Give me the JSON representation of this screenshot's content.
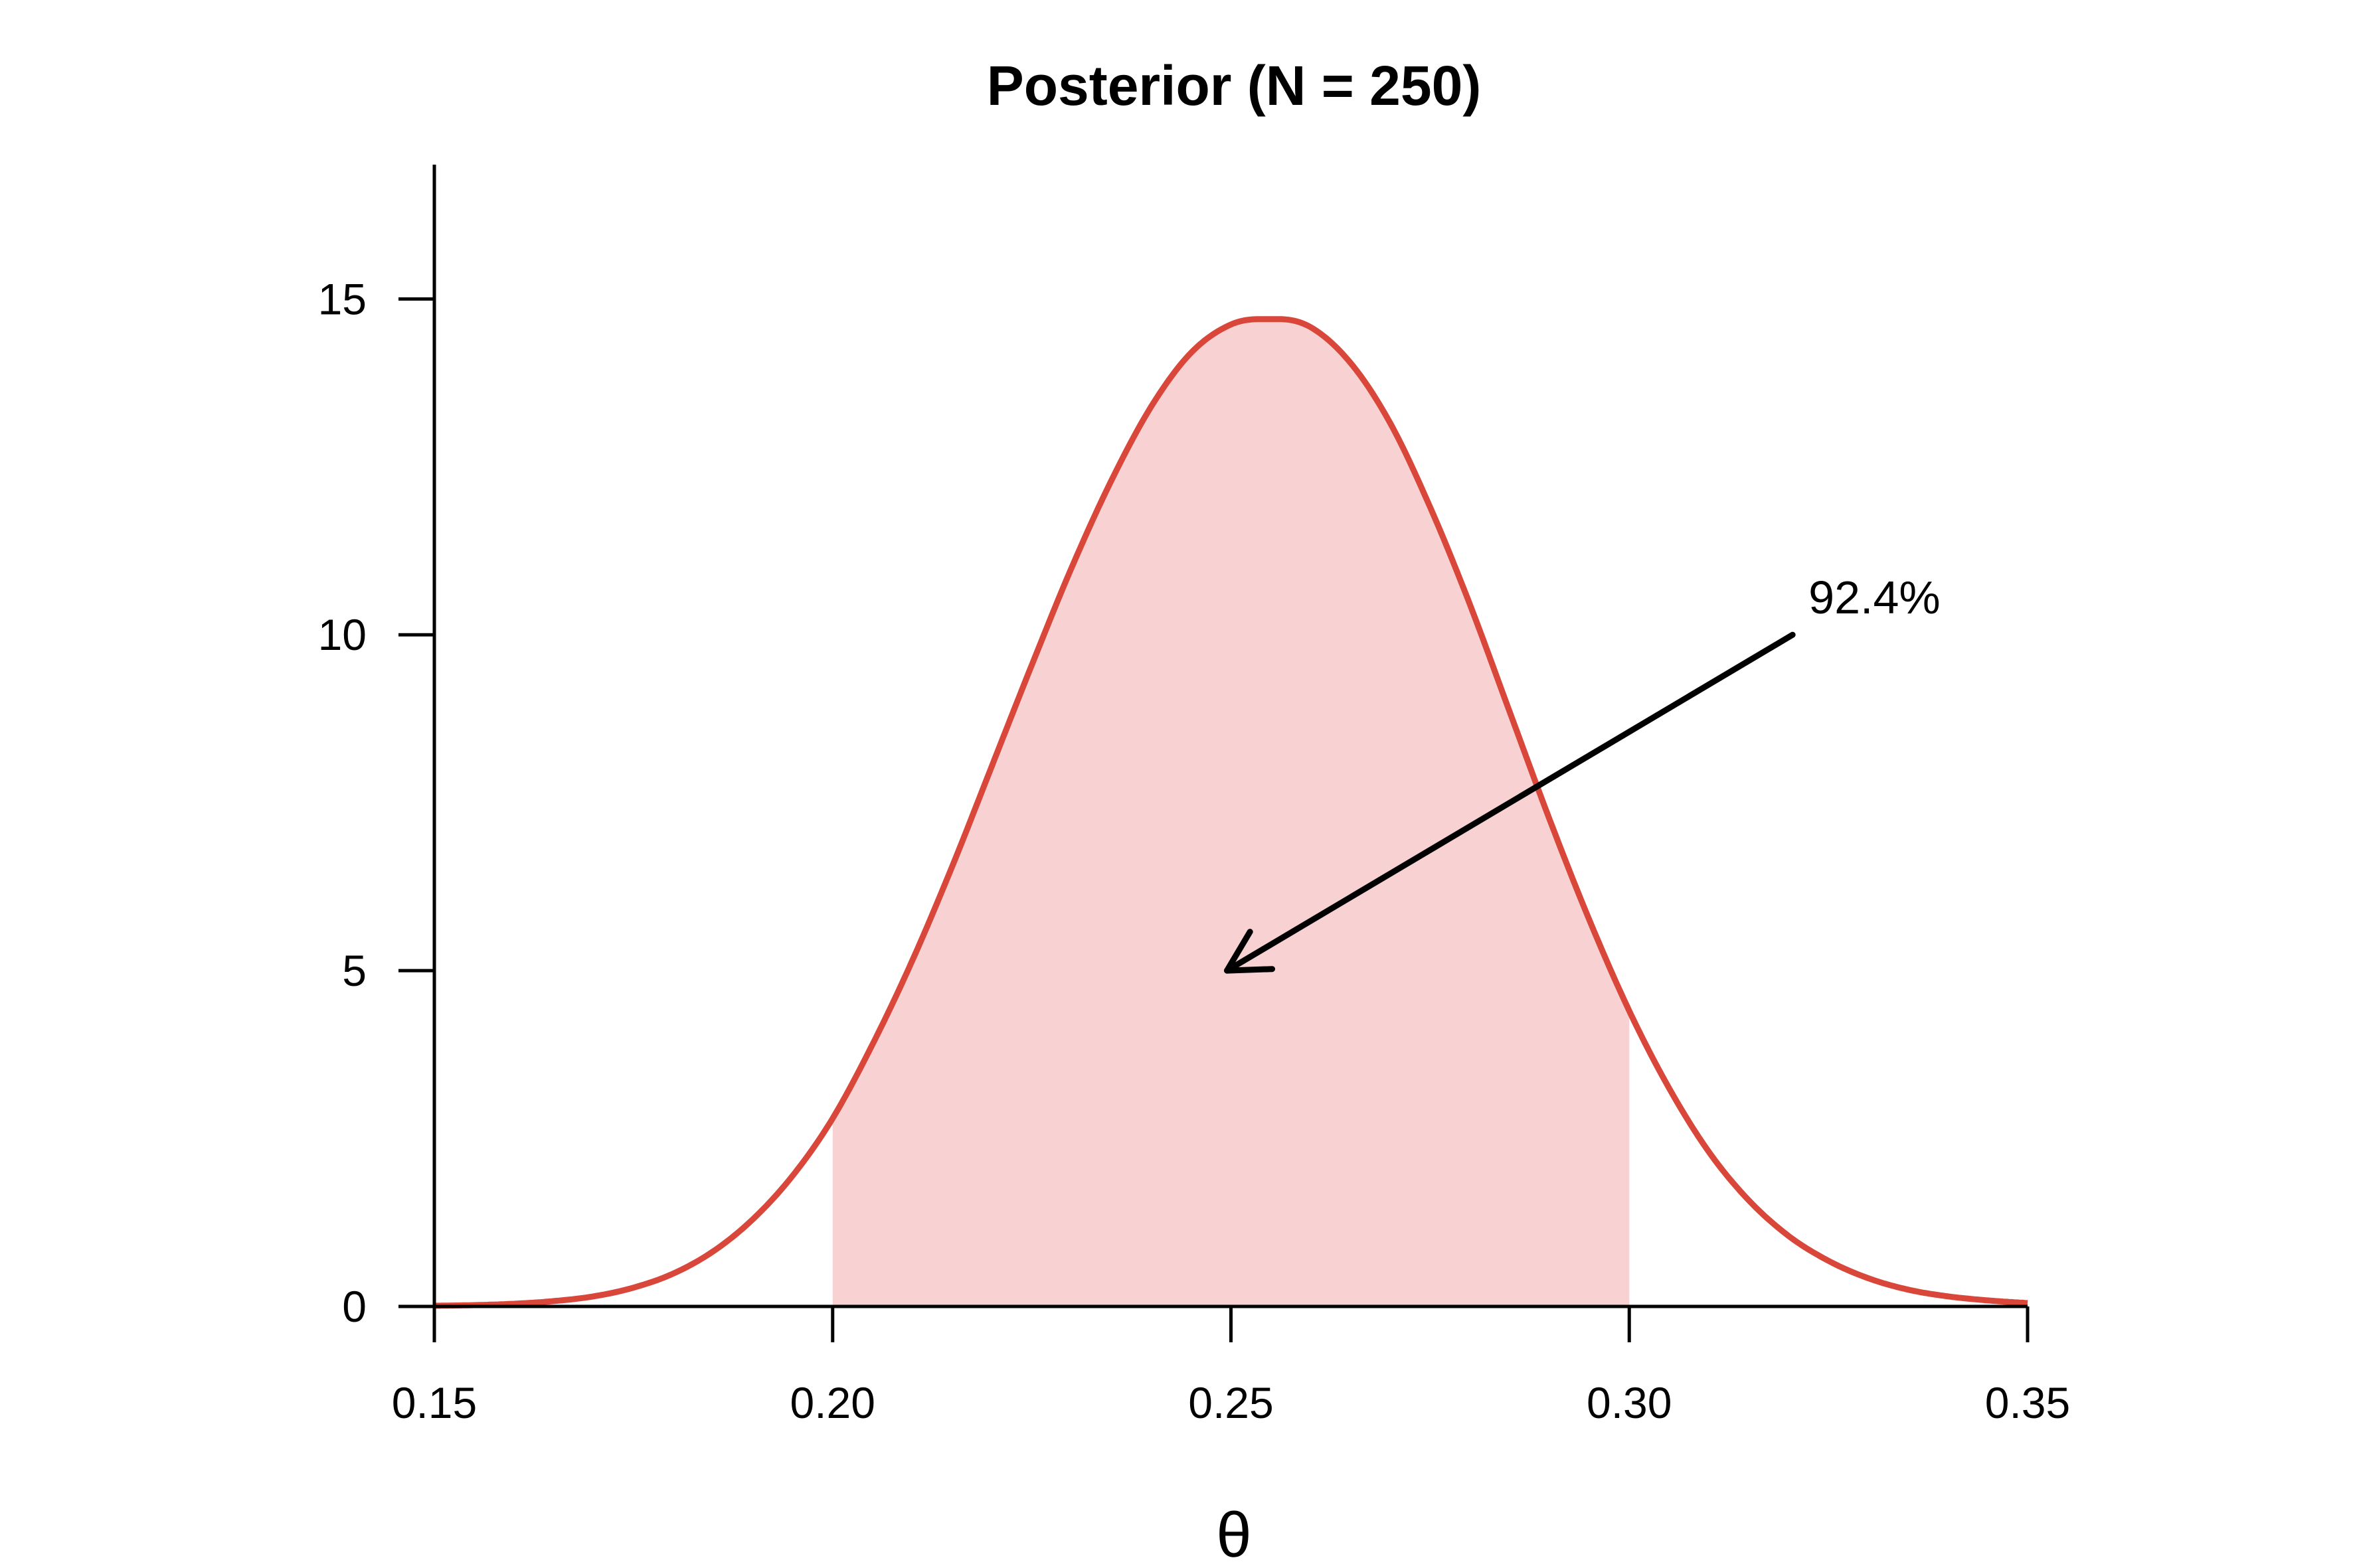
{
  "chart_data": {
    "type": "area",
    "title": "Posterior (N = 250)",
    "xlabel": "θ",
    "ylabel": "",
    "xlim": [
      0.15,
      0.35
    ],
    "ylim": [
      0,
      17
    ],
    "x_ticks": [
      0.15,
      0.2,
      0.25,
      0.3,
      0.35
    ],
    "x_tick_labels": [
      "0.15",
      "0.20",
      "0.25",
      "0.30",
      "0.35"
    ],
    "y_ticks": [
      0,
      5,
      10,
      15
    ],
    "y_tick_labels": [
      "0",
      "5",
      "10",
      "15"
    ],
    "grid": false,
    "series": [
      {
        "x": [
          0.15,
          0.155,
          0.16,
          0.165,
          0.17,
          0.175,
          0.18,
          0.185,
          0.19,
          0.195,
          0.2,
          0.205,
          0.21,
          0.215,
          0.22,
          0.225,
          0.23,
          0.235,
          0.24,
          0.245,
          0.25,
          0.2536,
          0.256,
          0.26,
          0.265,
          0.27,
          0.275,
          0.28,
          0.285,
          0.29,
          0.295,
          0.3,
          0.305,
          0.31,
          0.315,
          0.32,
          0.325,
          0.33,
          0.335,
          0.34,
          0.345,
          0.35
        ],
        "y": [
          0.01,
          0.02,
          0.04,
          0.08,
          0.15,
          0.28,
          0.49,
          0.82,
          1.3,
          1.95,
          2.8,
          3.9,
          5.15,
          6.55,
          8.05,
          9.55,
          11.0,
          12.3,
          13.4,
          14.2,
          14.62,
          14.7,
          14.7,
          14.58,
          14.05,
          13.15,
          11.9,
          10.45,
          8.85,
          7.25,
          5.75,
          4.4,
          3.25,
          2.3,
          1.58,
          1.05,
          0.68,
          0.42,
          0.25,
          0.15,
          0.09,
          0.05
        ],
        "color": "#d9473a"
      }
    ],
    "shaded_interval": {
      "from": 0.2,
      "to": 0.3,
      "color": "#f8d2d3"
    },
    "annotations": [
      {
        "text": "92.4%",
        "text_x": 0.3205,
        "text_y": 10.3,
        "arrow_from": [
          0.3205,
          10.0
        ],
        "arrow_to": [
          0.2495,
          5.0
        ]
      }
    ]
  }
}
